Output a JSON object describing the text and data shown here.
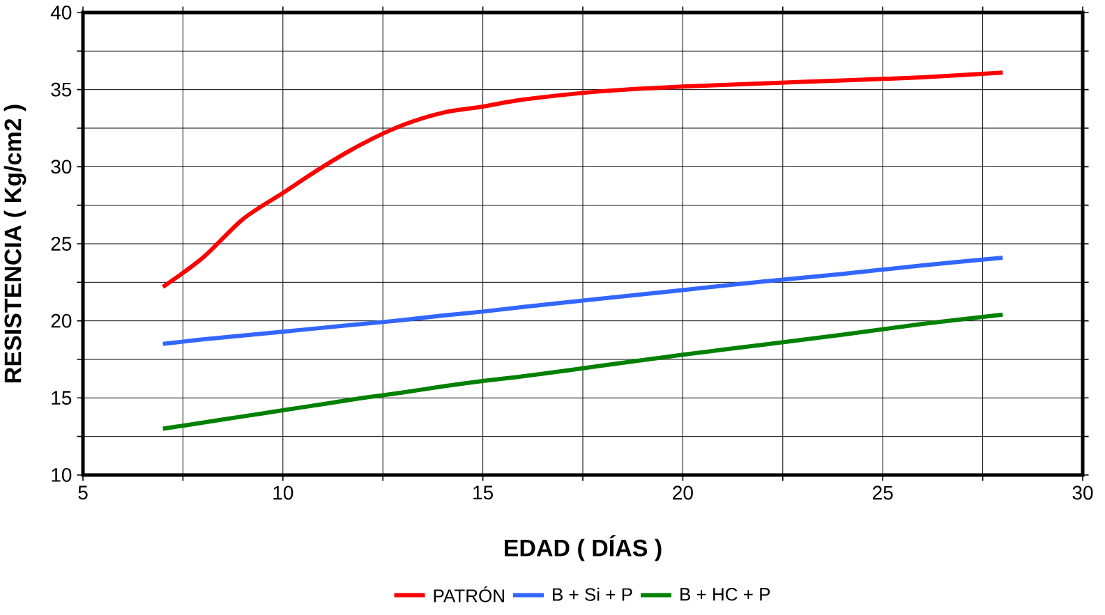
{
  "chart_data": {
    "type": "line",
    "xlabel": "EDAD ( DÍAS )",
    "ylabel": "RESISTENCIA ( Kg/cm2 )",
    "xlim": [
      5,
      30
    ],
    "ylim": [
      10,
      40
    ],
    "xticks": [
      5,
      {
        "value": 7.5,
        "label": null
      },
      10,
      {
        "value": 12.5,
        "label": null
      },
      15,
      {
        "value": 17.5,
        "label": null
      },
      20,
      {
        "value": 22.5,
        "label": null
      },
      25,
      {
        "value": 27.5,
        "label": null
      },
      30
    ],
    "yticks": [
      10,
      {
        "value": 12.5,
        "label": null
      },
      15,
      {
        "value": 17.5,
        "label": null
      },
      20,
      {
        "value": 22.5,
        "label": null
      },
      25,
      {
        "value": 27.5,
        "label": null
      },
      30,
      {
        "value": 32.5,
        "label": null
      },
      35,
      {
        "value": 37.5,
        "label": null
      },
      40
    ],
    "grid": true,
    "legend": "bottom",
    "marker": "none",
    "line_style": "solid",
    "x": [
      7,
      8,
      9,
      10,
      11,
      12,
      13,
      14,
      15,
      16,
      18,
      20,
      22,
      24,
      26,
      28
    ],
    "series": [
      {
        "name": "PATRÓN",
        "color": "#ff0000",
        "values": [
          22.2,
          24.1,
          26.6,
          28.3,
          30.0,
          31.5,
          32.7,
          33.5,
          33.9,
          34.35,
          34.9,
          35.2,
          35.4,
          35.6,
          35.8,
          36.1
        ]
      },
      {
        "name": "B + Si + P",
        "color": "#3366ff",
        "values": [
          18.5,
          18.8,
          19.05,
          19.3,
          19.55,
          19.8,
          20.05,
          20.35,
          20.6,
          20.9,
          21.45,
          22.0,
          22.55,
          23.05,
          23.6,
          24.1
        ]
      },
      {
        "name": "B + HC + P",
        "color": "#008000",
        "values": [
          13.0,
          13.4,
          13.8,
          14.2,
          14.6,
          15.0,
          15.35,
          15.75,
          16.1,
          16.4,
          17.1,
          17.8,
          18.45,
          19.1,
          19.8,
          20.4
        ]
      }
    ]
  }
}
